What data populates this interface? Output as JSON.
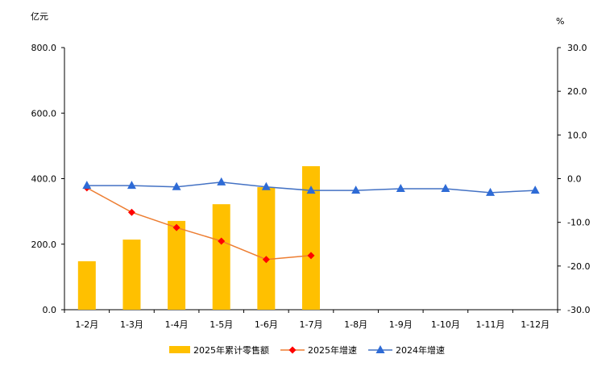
{
  "chart_data": {
    "type": "bar+line",
    "categories": [
      "1-2月",
      "1-3月",
      "1-4月",
      "1-5月",
      "1-6月",
      "1-7月",
      "1-8月",
      "1-9月",
      "1-10月",
      "1-11月",
      "1-12月"
    ],
    "left_axis": {
      "label": "亿元",
      "ylim": [
        0,
        800
      ],
      "ticks": [
        "0.0",
        "200.0",
        "400.0",
        "600.0",
        "800.0"
      ]
    },
    "right_axis": {
      "label": "%",
      "ylim": [
        -30,
        30
      ],
      "ticks": [
        "-30.0",
        "-20.0",
        "-10.0",
        "0.0",
        "10.0",
        "20.0",
        "30.0"
      ]
    },
    "grid": false,
    "legend_position": "bottom",
    "series": [
      {
        "name": "2025年累计零售额",
        "type": "bar",
        "axis": "left",
        "color": "#FFC000",
        "values": [
          148,
          214,
          271,
          322,
          374,
          438,
          null,
          null,
          null,
          null,
          null
        ]
      },
      {
        "name": "2025年增速",
        "type": "line",
        "axis": "right",
        "color": "#ED7D31",
        "marker_color": "#FF0000",
        "marker": "diamond",
        "values": [
          -2.1,
          -7.7,
          -11.2,
          -14.3,
          -18.5,
          -17.6,
          null,
          null,
          null,
          null,
          null
        ]
      },
      {
        "name": "2024年增速",
        "type": "line",
        "axis": "right",
        "color": "#4472C4",
        "marker_color": "#2E6BD6",
        "marker": "triangle",
        "values": [
          -1.6,
          -1.6,
          -1.9,
          -0.8,
          -1.9,
          -2.7,
          -2.7,
          -2.3,
          -2.3,
          -3.2,
          -2.7
        ]
      }
    ]
  }
}
